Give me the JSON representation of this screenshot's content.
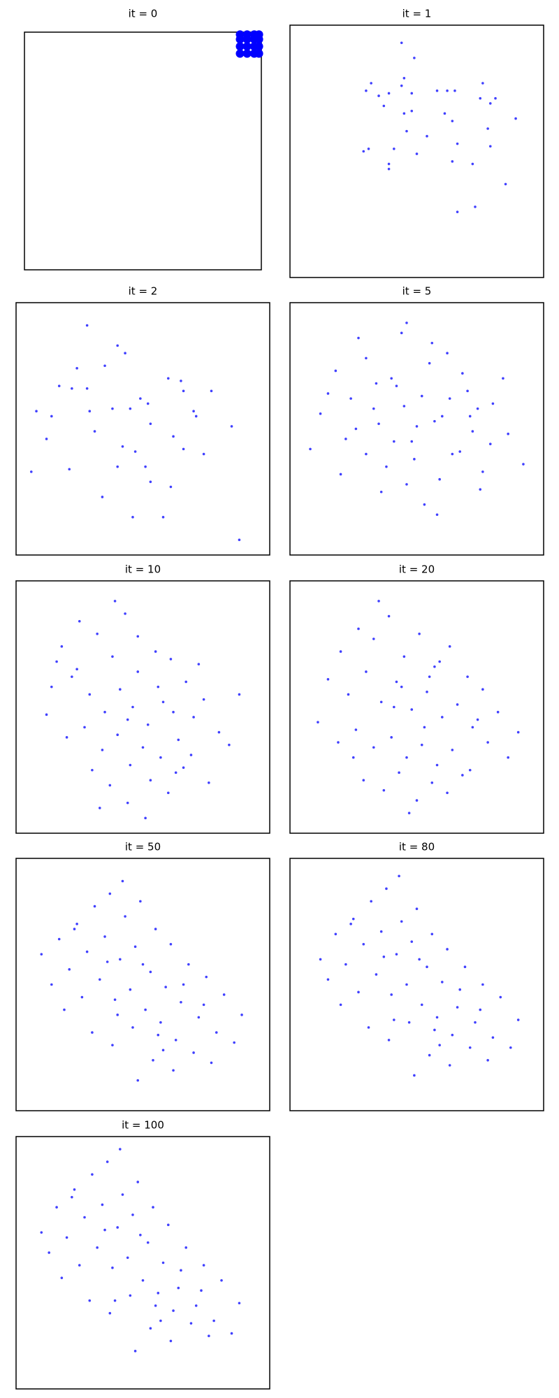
{
  "chart_data": [
    {
      "type": "scatter",
      "title": "it = 0",
      "color": "#0000ff",
      "xlim": [
        0,
        1
      ],
      "ylim": [
        0,
        1
      ],
      "x": [
        0.91,
        0.94,
        0.97,
        0.99,
        0.91,
        0.94,
        0.97,
        0.99,
        0.91,
        0.94,
        0.97,
        0.99,
        0.91,
        0.94,
        0.97,
        0.99
      ],
      "y": [
        0.91,
        0.91,
        0.91,
        0.91,
        0.94,
        0.94,
        0.94,
        0.94,
        0.97,
        0.97,
        0.97,
        0.97,
        0.99,
        0.99,
        0.99,
        0.99
      ]
    },
    {
      "type": "scatter",
      "title": "it = 1",
      "color": "#0000ff",
      "xlim": [
        0,
        1
      ],
      "ylim": [
        0,
        1
      ],
      "x": [
        0.44,
        0.49,
        0.32,
        0.3,
        0.35,
        0.39,
        0.45,
        0.44,
        0.48,
        0.58,
        0.62,
        0.65,
        0.76,
        0.75,
        0.81,
        0.79,
        0.37,
        0.45,
        0.48,
        0.61,
        0.64,
        0.46,
        0.78,
        0.54,
        0.66,
        0.5,
        0.41,
        0.31,
        0.29,
        0.39,
        0.39,
        0.64,
        0.72,
        0.79,
        0.85,
        0.89,
        0.73,
        0.66
      ],
      "y": [
        0.93,
        0.87,
        0.77,
        0.74,
        0.72,
        0.73,
        0.79,
        0.76,
        0.73,
        0.74,
        0.74,
        0.74,
        0.77,
        0.71,
        0.71,
        0.69,
        0.68,
        0.65,
        0.66,
        0.65,
        0.62,
        0.58,
        0.59,
        0.56,
        0.53,
        0.49,
        0.51,
        0.51,
        0.5,
        0.45,
        0.43,
        0.46,
        0.45,
        0.52,
        0.37,
        0.63,
        0.28,
        0.26
      ]
    },
    {
      "type": "scatter",
      "title": "it = 2",
      "color": "#0000ff",
      "xlim": [
        0,
        1
      ],
      "ylim": [
        0,
        1
      ],
      "x": [
        0.28,
        0.4,
        0.43,
        0.35,
        0.17,
        0.22,
        0.28,
        0.45,
        0.52,
        0.6,
        0.65,
        0.66,
        0.7,
        0.08,
        0.14,
        0.12,
        0.29,
        0.31,
        0.42,
        0.47,
        0.53,
        0.62,
        0.71,
        0.85,
        0.49,
        0.4,
        0.53,
        0.21,
        0.34,
        0.46,
        0.58,
        0.66,
        0.77,
        0.51,
        0.61,
        0.06,
        0.74,
        0.24,
        0.38,
        0.88
      ],
      "y": [
        0.91,
        0.83,
        0.8,
        0.75,
        0.67,
        0.66,
        0.66,
        0.58,
        0.6,
        0.7,
        0.69,
        0.65,
        0.57,
        0.57,
        0.55,
        0.46,
        0.57,
        0.49,
        0.43,
        0.41,
        0.52,
        0.47,
        0.55,
        0.51,
        0.62,
        0.35,
        0.29,
        0.34,
        0.23,
        0.15,
        0.15,
        0.42,
        0.65,
        0.35,
        0.27,
        0.33,
        0.4,
        0.74,
        0.58,
        0.06
      ]
    },
    {
      "type": "scatter",
      "title": "it = 5",
      "color": "#0000ff",
      "xlim": [
        0,
        1
      ],
      "ylim": [
        0,
        1
      ],
      "x": [
        0.12,
        0.18,
        0.24,
        0.3,
        0.35,
        0.4,
        0.44,
        0.48,
        0.52,
        0.56,
        0.6,
        0.64,
        0.68,
        0.72,
        0.76,
        0.8,
        0.86,
        0.92,
        0.08,
        0.15,
        0.22,
        0.27,
        0.33,
        0.38,
        0.42,
        0.46,
        0.5,
        0.55,
        0.59,
        0.63,
        0.67,
        0.71,
        0.75,
        0.79,
        0.84,
        0.3,
        0.36,
        0.45,
        0.53,
        0.62,
        0.7,
        0.41,
        0.49,
        0.57,
        0.26,
        0.2,
        0.74,
        0.34,
        0.58,
        0.46
      ],
      "y": [
        0.56,
        0.73,
        0.62,
        0.78,
        0.52,
        0.7,
        0.88,
        0.45,
        0.63,
        0.84,
        0.55,
        0.4,
        0.72,
        0.49,
        0.33,
        0.6,
        0.48,
        0.36,
        0.42,
        0.64,
        0.46,
        0.86,
        0.58,
        0.35,
        0.67,
        0.28,
        0.51,
        0.76,
        0.3,
        0.62,
        0.41,
        0.55,
        0.26,
        0.44,
        0.7,
        0.4,
        0.25,
        0.59,
        0.2,
        0.8,
        0.65,
        0.45,
        0.38,
        0.53,
        0.5,
        0.32,
        0.58,
        0.68,
        0.16,
        0.92
      ]
    },
    {
      "type": "scatter",
      "title": "it = 10",
      "color": "#0000ff",
      "xlim": [
        0,
        1
      ],
      "ylim": [
        0,
        1
      ],
      "x": [
        0.18,
        0.25,
        0.32,
        0.38,
        0.43,
        0.48,
        0.55,
        0.61,
        0.67,
        0.74,
        0.14,
        0.22,
        0.29,
        0.35,
        0.41,
        0.46,
        0.52,
        0.58,
        0.64,
        0.7,
        0.8,
        0.12,
        0.2,
        0.27,
        0.34,
        0.4,
        0.45,
        0.5,
        0.57,
        0.63,
        0.69,
        0.76,
        0.84,
        0.3,
        0.37,
        0.44,
        0.53,
        0.6,
        0.66,
        0.24,
        0.48,
        0.56,
        0.72,
        0.16,
        0.39,
        0.62,
        0.88,
        0.33,
        0.51,
        0.44
      ],
      "y": [
        0.74,
        0.84,
        0.79,
        0.7,
        0.87,
        0.64,
        0.72,
        0.69,
        0.6,
        0.53,
        0.58,
        0.62,
        0.55,
        0.48,
        0.57,
        0.5,
        0.43,
        0.52,
        0.37,
        0.46,
        0.4,
        0.47,
        0.38,
        0.42,
        0.33,
        0.39,
        0.27,
        0.34,
        0.3,
        0.24,
        0.31,
        0.2,
        0.35,
        0.25,
        0.19,
        0.12,
        0.21,
        0.16,
        0.26,
        0.65,
        0.78,
        0.58,
        0.67,
        0.68,
        0.92,
        0.48,
        0.55,
        0.1,
        0.06,
        0.45
      ]
    },
    {
      "type": "scatter",
      "title": "it = 20",
      "color": "#0000ff",
      "xlim": [
        0,
        1
      ],
      "ylim": [
        0,
        1
      ],
      "x": [
        0.2,
        0.27,
        0.33,
        0.39,
        0.45,
        0.51,
        0.57,
        0.63,
        0.7,
        0.76,
        0.15,
        0.23,
        0.3,
        0.36,
        0.42,
        0.48,
        0.54,
        0.6,
        0.66,
        0.72,
        0.82,
        0.11,
        0.19,
        0.26,
        0.33,
        0.4,
        0.46,
        0.52,
        0.58,
        0.64,
        0.71,
        0.78,
        0.86,
        0.29,
        0.37,
        0.43,
        0.5,
        0.56,
        0.62,
        0.68,
        0.35,
        0.44,
        0.53,
        0.25,
        0.47,
        0.59,
        0.74,
        0.41,
        0.55,
        0.9
      ],
      "y": [
        0.72,
        0.81,
        0.77,
        0.86,
        0.7,
        0.79,
        0.66,
        0.74,
        0.62,
        0.57,
        0.61,
        0.55,
        0.64,
        0.52,
        0.6,
        0.49,
        0.56,
        0.46,
        0.51,
        0.42,
        0.48,
        0.44,
        0.36,
        0.41,
        0.34,
        0.38,
        0.3,
        0.35,
        0.27,
        0.33,
        0.25,
        0.36,
        0.3,
        0.21,
        0.17,
        0.24,
        0.13,
        0.2,
        0.16,
        0.23,
        0.92,
        0.58,
        0.42,
        0.3,
        0.08,
        0.68,
        0.45,
        0.5,
        0.62,
        0.4
      ]
    },
    {
      "type": "scatter",
      "title": "it = 50",
      "color": "#0000ff",
      "xlim": [
        0,
        1
      ],
      "ylim": [
        0,
        1
      ],
      "x": [
        0.1,
        0.17,
        0.24,
        0.31,
        0.37,
        0.43,
        0.49,
        0.55,
        0.61,
        0.68,
        0.75,
        0.82,
        0.89,
        0.14,
        0.21,
        0.28,
        0.35,
        0.41,
        0.47,
        0.53,
        0.59,
        0.65,
        0.72,
        0.79,
        0.86,
        0.19,
        0.26,
        0.33,
        0.39,
        0.45,
        0.51,
        0.57,
        0.63,
        0.7,
        0.77,
        0.3,
        0.38,
        0.46,
        0.54,
        0.62,
        0.42,
        0.5,
        0.58,
        0.36,
        0.66,
        0.23,
        0.74,
        0.48,
        0.4,
        0.56
      ],
      "y": [
        0.62,
        0.68,
        0.74,
        0.81,
        0.86,
        0.77,
        0.83,
        0.72,
        0.66,
        0.58,
        0.53,
        0.46,
        0.38,
        0.5,
        0.56,
        0.63,
        0.69,
        0.6,
        0.65,
        0.55,
        0.49,
        0.43,
        0.37,
        0.31,
        0.27,
        0.4,
        0.45,
        0.52,
        0.44,
        0.48,
        0.4,
        0.35,
        0.28,
        0.23,
        0.19,
        0.31,
        0.26,
        0.33,
        0.2,
        0.16,
        0.91,
        0.58,
        0.24,
        0.59,
        0.5,
        0.72,
        0.42,
        0.12,
        0.38,
        0.3
      ]
    },
    {
      "type": "scatter",
      "title": "it = 80",
      "color": "#0000ff",
      "xlim": [
        0,
        1
      ],
      "ylim": [
        0,
        1
      ],
      "x": [
        0.12,
        0.18,
        0.25,
        0.32,
        0.38,
        0.44,
        0.5,
        0.56,
        0.62,
        0.69,
        0.76,
        0.83,
        0.9,
        0.15,
        0.22,
        0.29,
        0.36,
        0.42,
        0.48,
        0.54,
        0.6,
        0.66,
        0.73,
        0.8,
        0.87,
        0.2,
        0.27,
        0.34,
        0.4,
        0.46,
        0.52,
        0.58,
        0.64,
        0.71,
        0.78,
        0.31,
        0.39,
        0.47,
        0.55,
        0.63,
        0.43,
        0.51,
        0.59,
        0.37,
        0.67,
        0.24,
        0.75,
        0.49,
        0.41,
        0.57
      ],
      "y": [
        0.6,
        0.7,
        0.76,
        0.83,
        0.88,
        0.75,
        0.8,
        0.7,
        0.64,
        0.57,
        0.5,
        0.45,
        0.36,
        0.52,
        0.58,
        0.66,
        0.71,
        0.62,
        0.67,
        0.57,
        0.51,
        0.41,
        0.35,
        0.29,
        0.25,
        0.42,
        0.47,
        0.54,
        0.46,
        0.5,
        0.42,
        0.37,
        0.3,
        0.25,
        0.2,
        0.33,
        0.28,
        0.35,
        0.22,
        0.18,
        0.93,
        0.6,
        0.26,
        0.61,
        0.48,
        0.74,
        0.4,
        0.14,
        0.36,
        0.32
      ]
    },
    {
      "type": "scatter",
      "title": "it = 100",
      "color": "#0000ff",
      "xlim": [
        0,
        1
      ],
      "ylim": [
        0,
        1
      ],
      "x": [
        0.1,
        0.16,
        0.23,
        0.3,
        0.36,
        0.42,
        0.48,
        0.54,
        0.6,
        0.67,
        0.74,
        0.81,
        0.88,
        0.13,
        0.2,
        0.27,
        0.34,
        0.4,
        0.46,
        0.52,
        0.58,
        0.64,
        0.71,
        0.78,
        0.85,
        0.18,
        0.25,
        0.32,
        0.38,
        0.44,
        0.5,
        0.56,
        0.62,
        0.69,
        0.76,
        0.29,
        0.37,
        0.45,
        0.53,
        0.61,
        0.41,
        0.49,
        0.57,
        0.35,
        0.65,
        0.22,
        0.73,
        0.47,
        0.39,
        0.55
      ],
      "y": [
        0.62,
        0.72,
        0.79,
        0.85,
        0.9,
        0.77,
        0.82,
        0.72,
        0.65,
        0.56,
        0.49,
        0.43,
        0.34,
        0.54,
        0.6,
        0.68,
        0.73,
        0.64,
        0.69,
        0.58,
        0.5,
        0.4,
        0.33,
        0.27,
        0.22,
        0.44,
        0.49,
        0.56,
        0.48,
        0.52,
        0.43,
        0.38,
        0.31,
        0.26,
        0.21,
        0.35,
        0.3,
        0.37,
        0.24,
        0.19,
        0.95,
        0.61,
        0.27,
        0.63,
        0.47,
        0.76,
        0.39,
        0.15,
        0.35,
        0.33
      ]
    }
  ]
}
